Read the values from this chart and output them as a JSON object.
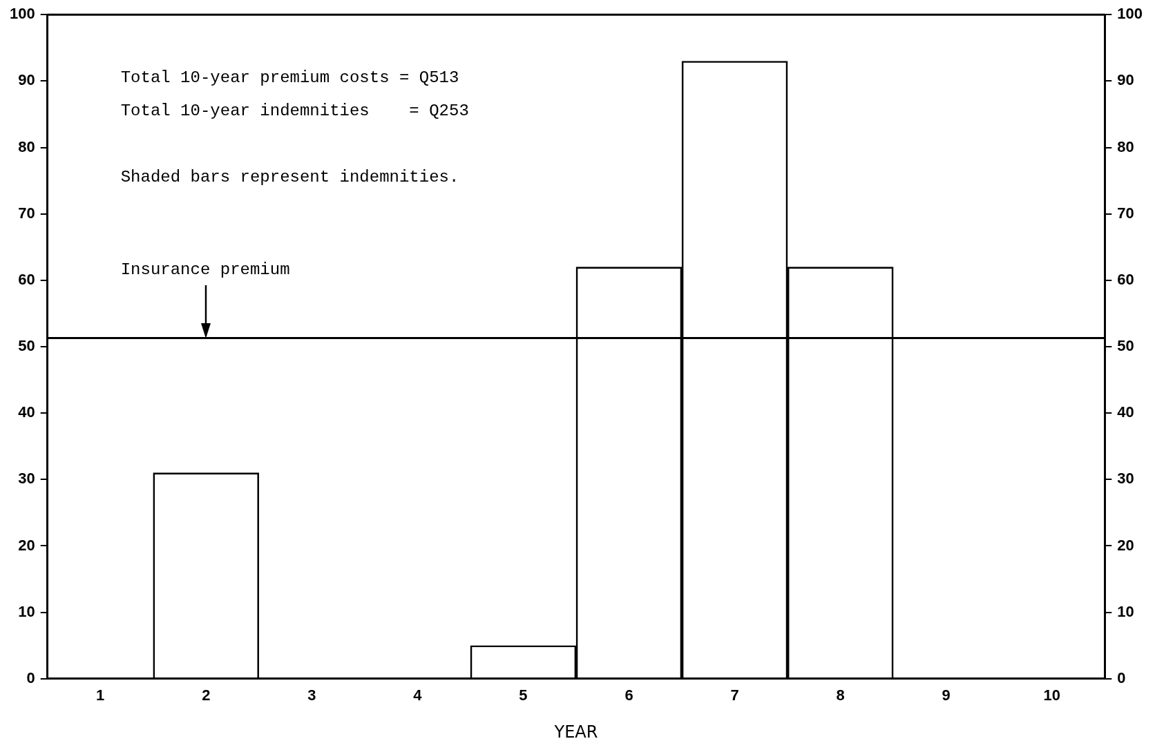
{
  "chart_data": {
    "type": "bar",
    "xlabel": "YEAR",
    "categories": [
      "1",
      "2",
      "3",
      "4",
      "5",
      "6",
      "7",
      "8",
      "9",
      "10"
    ],
    "series": [
      {
        "color": "#000000",
        "values": [
          0,
          31,
          0,
          0,
          5,
          62,
          93,
          62,
          0,
          0
        ]
      }
    ],
    "ylim": [
      0,
      100
    ],
    "yticks": [
      0,
      10,
      20,
      30,
      40,
      50,
      60,
      70,
      80,
      90,
      100
    ],
    "y2lim": [
      0,
      100
    ],
    "y2ticks": [
      0,
      10,
      20,
      30,
      40,
      50,
      60,
      70,
      80,
      90,
      100
    ],
    "ref_lines": [
      {
        "axis": "y",
        "value": 51.3,
        "color": "#000000"
      }
    ],
    "annotations": [
      "Total 10-year premium costs = Q513",
      "Total 10-year indemnities    = Q253",
      "Shaded bars represent indemnities.",
      {
        "text": "Insurance premium",
        "x": "2",
        "y": 51.3
      }
    ],
    "grid": false,
    "legend": false
  }
}
